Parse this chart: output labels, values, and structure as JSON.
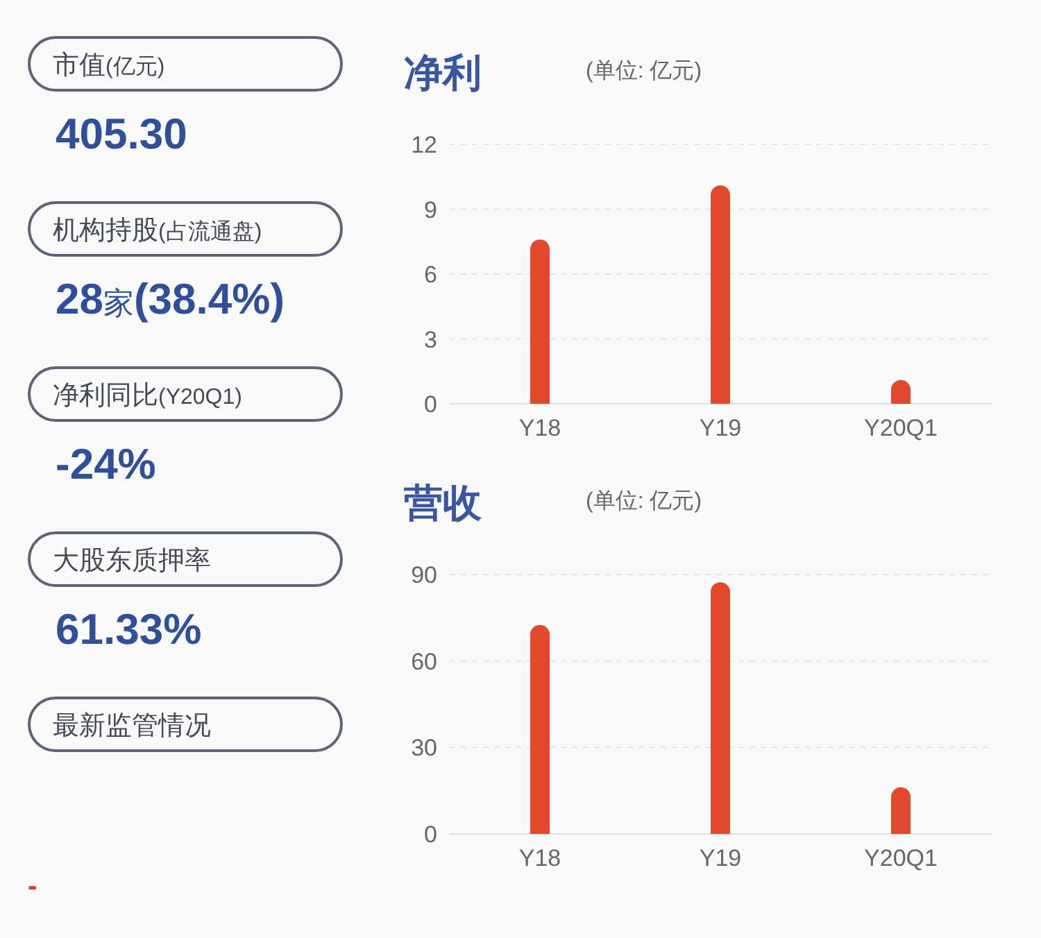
{
  "chart_data": [
    {
      "type": "other",
      "categories": [
        "市值(亿元)",
        "机构持股(占流通盘)",
        "净利同比(Y20Q1)",
        "大股东质押率",
        "最新监管情况"
      ],
      "value_labels": [
        "405.30",
        "28家(38.4%)",
        "-24%",
        "61.33%",
        null
      ],
      "annotations": [
        "-"
      ]
    },
    {
      "type": "bar",
      "title": "净利",
      "subtitle": "(单位: 亿元)",
      "categories": [
        "Y18",
        "Y19",
        "Y20Q1"
      ],
      "values": [
        7.6,
        10.1,
        1.1
      ],
      "color": "#e2482c",
      "ylim": [
        0,
        12
      ],
      "yticks": [
        0,
        3,
        6,
        9,
        12
      ],
      "grid": "y"
    },
    {
      "type": "bar",
      "title": "营收",
      "subtitle": "(单位: 亿元)",
      "categories": [
        "Y18",
        "Y19",
        "Y20Q1"
      ],
      "values": [
        72.5,
        87.3,
        16.2
      ],
      "color": "#e2482c",
      "ylim": [
        0,
        90
      ],
      "yticks": [
        0,
        30,
        60,
        90
      ],
      "grid": "y"
    }
  ]
}
